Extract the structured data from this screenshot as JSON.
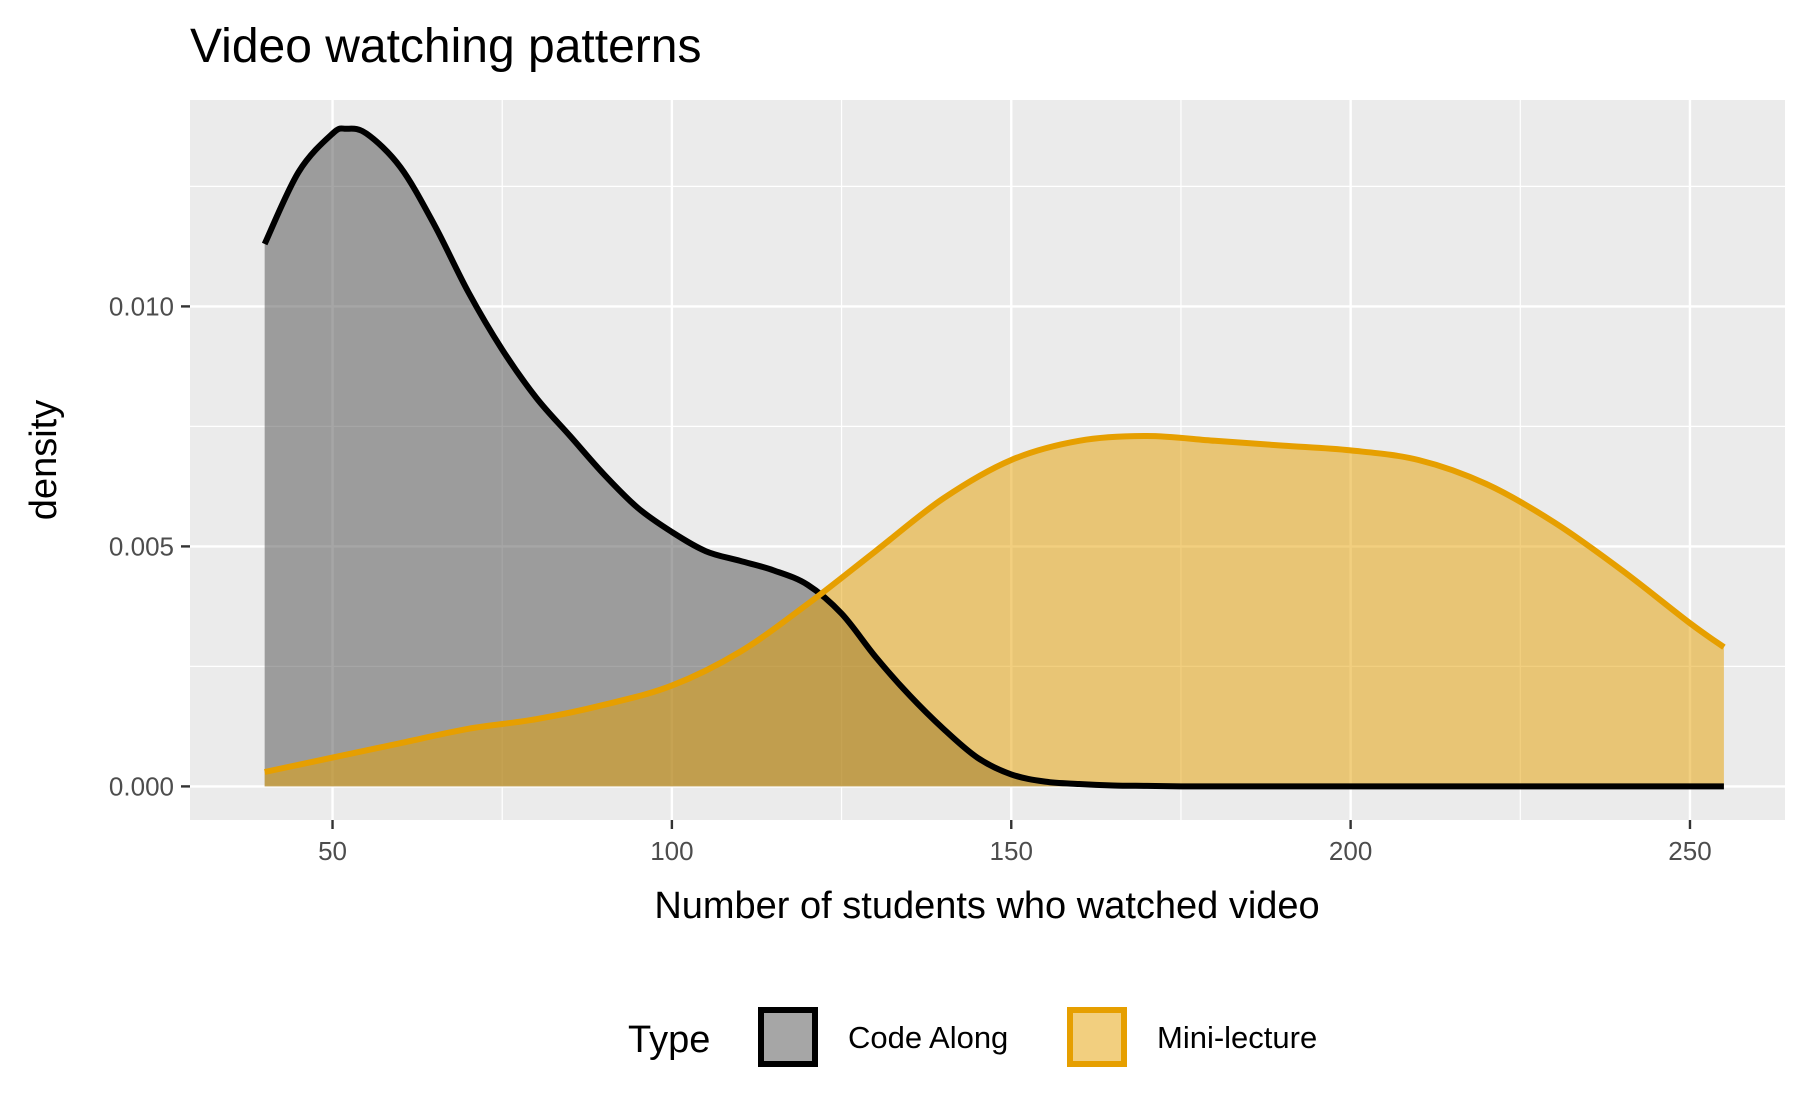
{
  "chart_data": {
    "type": "area",
    "subtype": "density",
    "title": "Video watching patterns",
    "xlabel": "Number of students who watched video",
    "ylabel": "density",
    "xlim": [
      29,
      264
    ],
    "ylim": [
      -0.0007,
      0.0143
    ],
    "x_ticks": [
      50,
      100,
      150,
      200,
      250
    ],
    "x_tick_labels": [
      "50",
      "100",
      "150",
      "200",
      "250"
    ],
    "y_ticks": [
      0.0,
      0.005,
      0.01
    ],
    "y_tick_labels": [
      "0.000",
      "0.005",
      "0.010"
    ],
    "grid": true,
    "legend": {
      "title": "Type",
      "position": "bottom"
    },
    "series": [
      {
        "name": "Code Along",
        "line_color": "#000000",
        "fill_color": "#4d4d4d",
        "x": [
          40,
          45,
          50,
          52,
          55,
          60,
          65,
          70,
          75,
          80,
          85,
          90,
          95,
          100,
          105,
          110,
          115,
          120,
          125,
          130,
          135,
          140,
          145,
          150,
          155,
          160,
          165,
          170,
          175,
          180,
          190,
          200,
          210,
          220,
          230,
          240,
          250,
          255
        ],
        "y": [
          0.0113,
          0.0128,
          0.0136,
          0.0137,
          0.0136,
          0.0129,
          0.0117,
          0.0103,
          0.0091,
          0.0081,
          0.0073,
          0.0065,
          0.0058,
          0.0053,
          0.0049,
          0.0047,
          0.0045,
          0.0042,
          0.0036,
          0.0027,
          0.0019,
          0.0012,
          0.0006,
          0.00025,
          0.0001,
          5e-05,
          2e-05,
          1e-05,
          0.0,
          0.0,
          0.0,
          0.0,
          0.0,
          0.0,
          0.0,
          0.0,
          0.0,
          0.0
        ]
      },
      {
        "name": "Mini-lecture",
        "line_color": "#e69f00",
        "fill_color": "#e69f00",
        "x": [
          40,
          50,
          60,
          70,
          80,
          90,
          100,
          110,
          120,
          130,
          140,
          150,
          160,
          170,
          180,
          190,
          200,
          210,
          220,
          230,
          240,
          250,
          255
        ],
        "y": [
          0.0003,
          0.0006,
          0.0009,
          0.0012,
          0.0014,
          0.0017,
          0.0021,
          0.0028,
          0.0038,
          0.0049,
          0.006,
          0.0068,
          0.0072,
          0.0073,
          0.0072,
          0.0071,
          0.007,
          0.0068,
          0.0063,
          0.0055,
          0.0045,
          0.0034,
          0.0029
        ]
      }
    ]
  }
}
